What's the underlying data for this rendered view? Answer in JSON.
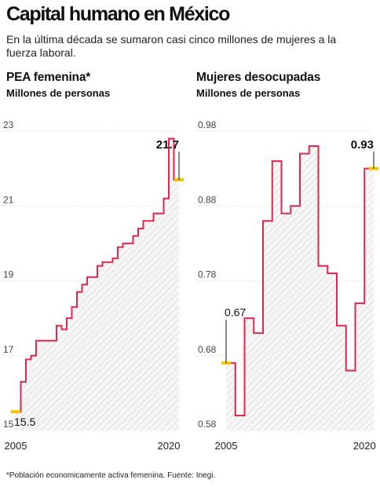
{
  "header": {
    "title": "Capital humano en México",
    "subtitle": "En la última década se sumaron casi cinco millones de mujeres a la fuerza laboral."
  },
  "footnote": "*Población economicamente activa femenina. Fuente: Inegi.",
  "colors": {
    "line": "#e2264d",
    "marker": "#f5c400",
    "grid": "#d4d4d4",
    "hatch": "#c8c8c8",
    "fill": "#f7f7f7"
  },
  "chart_data": [
    {
      "type": "area",
      "title": "PEA femenina*",
      "ylabel": "Millones de personas",
      "ylim": [
        15,
        23
      ],
      "yticks": [
        "15",
        "17",
        "19",
        "21",
        "23"
      ],
      "xticks": [
        "2005",
        "2020"
      ],
      "xlim": [
        2005,
        2021
      ],
      "x": [
        2005,
        2005.5,
        2006,
        2006.5,
        2007,
        2007.5,
        2008,
        2008.5,
        2009,
        2009.5,
        2010,
        2010.5,
        2011,
        2011.5,
        2012,
        2012.5,
        2013,
        2013.5,
        2014,
        2014.5,
        2015,
        2015.5,
        2016,
        2016.5,
        2017,
        2017.5,
        2018,
        2018.5,
        2019,
        2019.5,
        2020,
        2020.5
      ],
      "values": [
        15.5,
        16.3,
        16.9,
        17.0,
        17.4,
        17.4,
        17.4,
        17.4,
        17.8,
        17.7,
        18.0,
        18.3,
        18.7,
        18.9,
        19.1,
        19.1,
        19.4,
        19.5,
        19.5,
        19.6,
        19.9,
        20.0,
        20.0,
        20.2,
        20.4,
        20.6,
        20.6,
        20.8,
        20.8,
        21.2,
        22.8,
        21.7
      ],
      "annotations": [
        {
          "label": "15.5",
          "x": 2005,
          "y": 15.5,
          "bold": false
        },
        {
          "label": "21.7",
          "x": 2020.5,
          "y": 21.7,
          "bold": true
        }
      ]
    },
    {
      "type": "area",
      "title": "Mujeres desocupadas",
      "ylabel": "Millones de personas",
      "ylim": [
        0.58,
        0.98
      ],
      "yticks": [
        "0.58",
        "0.68",
        "0.78",
        "0.88",
        "0.98"
      ],
      "xticks": [
        "2005",
        "2020"
      ],
      "xlim": [
        2005,
        2021
      ],
      "x": [
        2005,
        2005.5,
        2006,
        2006.5,
        2007,
        2007.5,
        2008,
        2008.5,
        2009,
        2009.5,
        2010,
        2010.5,
        2011,
        2011.5,
        2012,
        2012.5,
        2013,
        2013.5,
        2014,
        2014.5,
        2015,
        2015.5,
        2016,
        2016.5,
        2017,
        2017.5,
        2018,
        2018.5,
        2019,
        2019.5,
        2020,
        2020.5
      ],
      "values": [
        0.67,
        0.67,
        0.6,
        0.6,
        0.73,
        0.73,
        0.71,
        0.71,
        0.86,
        0.86,
        0.94,
        0.94,
        0.87,
        0.87,
        0.88,
        0.88,
        0.95,
        0.95,
        0.96,
        0.96,
        0.8,
        0.8,
        0.79,
        0.79,
        0.72,
        0.72,
        0.66,
        0.66,
        0.75,
        0.75,
        0.93,
        0.93
      ],
      "annotations": [
        {
          "label": "0.67",
          "x": 2005,
          "y": 0.67,
          "bold": false
        },
        {
          "label": "0.93",
          "x": 2020.5,
          "y": 0.93,
          "bold": true
        }
      ]
    }
  ]
}
